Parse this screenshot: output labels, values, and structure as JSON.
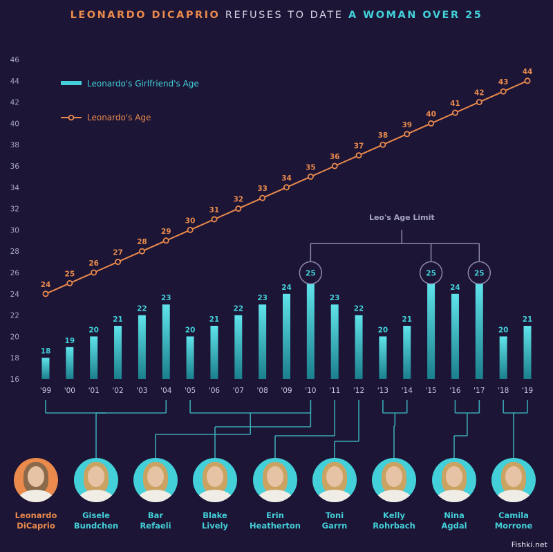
{
  "title": {
    "part1": "LEONARDO DICAPRIO",
    "part2": "REFUSES TO DATE",
    "part3": "A WOMAN OVER 25"
  },
  "chart_data": {
    "type": "bar",
    "categories": [
      "'99",
      "'00",
      "'01",
      "'02",
      "'03",
      "'04",
      "'05",
      "'06",
      "'07",
      "'08",
      "'09",
      "'10",
      "'11",
      "'12",
      "'13",
      "'14",
      "'15",
      "'16",
      "'17",
      "'18",
      "'19"
    ],
    "series": [
      {
        "name": "Leonardo's Girlfriend's Age",
        "kind": "bar",
        "color": "#43d0d8",
        "values": [
          18,
          19,
          20,
          21,
          22,
          23,
          20,
          21,
          22,
          23,
          24,
          25,
          23,
          22,
          20,
          21,
          25,
          24,
          25,
          20,
          21
        ]
      },
      {
        "name": "Leonardo's Age",
        "kind": "line",
        "color": "#ea8a4c",
        "values": [
          24,
          25,
          26,
          27,
          28,
          29,
          30,
          31,
          32,
          33,
          34,
          35,
          36,
          37,
          38,
          39,
          40,
          41,
          42,
          43,
          44
        ]
      }
    ],
    "ylim": [
      16,
      46
    ],
    "yticks": [
      16,
      18,
      20,
      22,
      24,
      26,
      28,
      30,
      32,
      34,
      36,
      38,
      40,
      42,
      44,
      46
    ],
    "legend": "top-left",
    "annotation": {
      "label": "Leo's Age Limit",
      "value": 25,
      "highlighted": [
        "'10",
        "'15",
        "'17"
      ]
    }
  },
  "people": [
    {
      "name_line1": "Leonardo",
      "name_line2": "DiCaprio",
      "subject": true,
      "years": []
    },
    {
      "name_line1": "Gisele",
      "name_line2": "Bundchen",
      "subject": false,
      "years": [
        "'99",
        "'04"
      ]
    },
    {
      "name_line1": "Bar",
      "name_line2": "Refaeli",
      "subject": false,
      "years": [
        "'05",
        "'10"
      ]
    },
    {
      "name_line1": "Blake",
      "name_line2": "Lively",
      "subject": false,
      "years": [
        "'10"
      ]
    },
    {
      "name_line1": "Erin",
      "name_line2": "Heatherton",
      "subject": false,
      "years": [
        "'11"
      ]
    },
    {
      "name_line1": "Toni",
      "name_line2": "Garrn",
      "subject": false,
      "years": [
        "'12"
      ]
    },
    {
      "name_line1": "Kelly",
      "name_line2": "Rohrbach",
      "subject": false,
      "years": [
        "'13",
        "'14"
      ]
    },
    {
      "name_line1": "Nina",
      "name_line2": "Agdal",
      "subject": false,
      "years": [
        "'16",
        "'17"
      ]
    },
    {
      "name_line1": "Camila",
      "name_line2": "Morrone",
      "subject": false,
      "years": [
        "'18",
        "'19"
      ]
    }
  ],
  "watermark": "Fishki.net",
  "colors": {
    "background": "#1c1536",
    "bar": "#43d0d8",
    "line": "#ea8a4c",
    "connector": "#3aa9b4"
  }
}
